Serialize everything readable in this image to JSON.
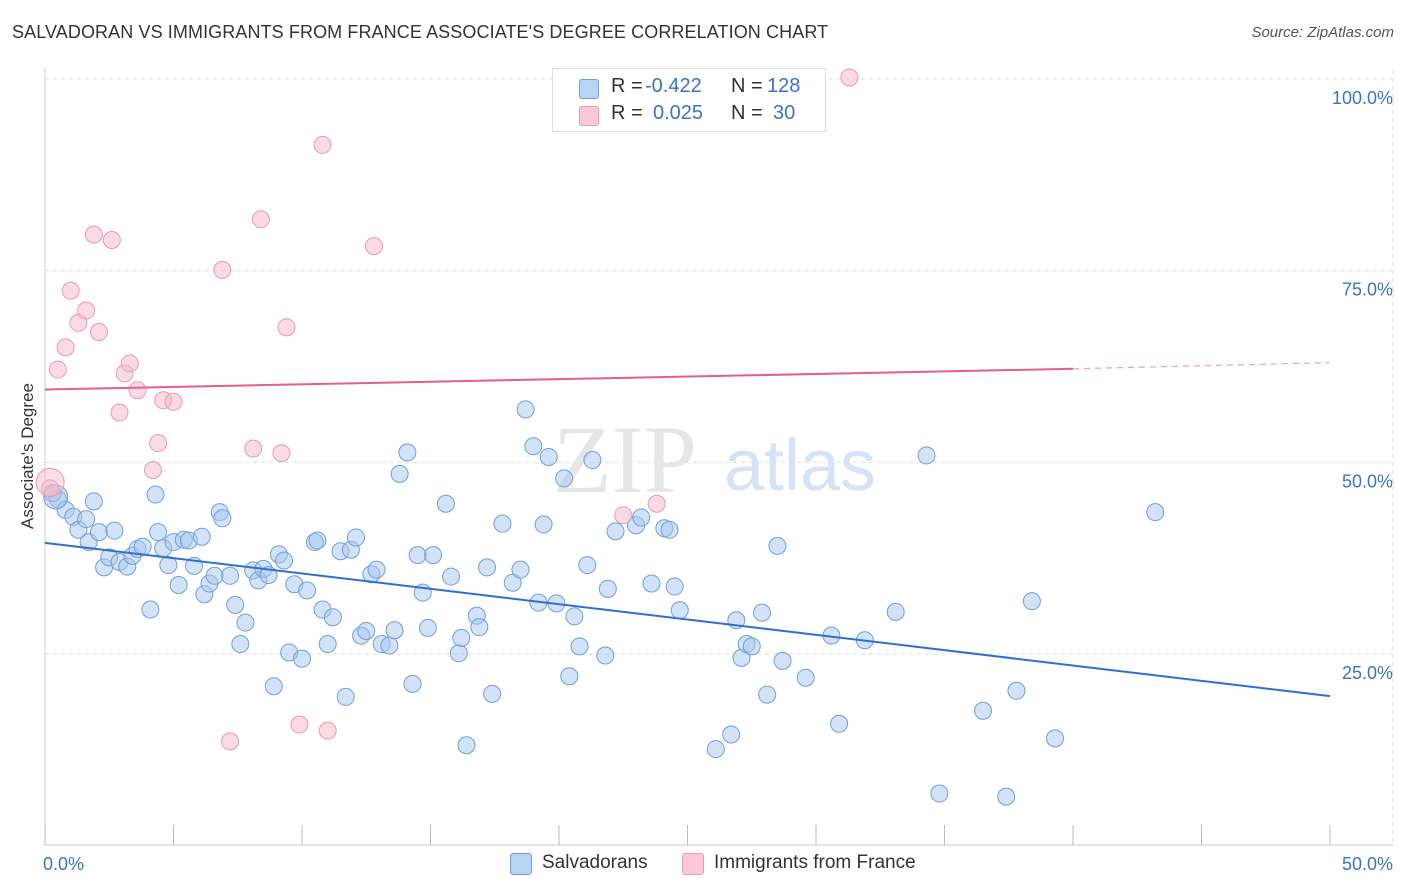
{
  "header": {
    "title": "SALVADORAN VS IMMIGRANTS FROM FRANCE ASSOCIATE'S DEGREE CORRELATION CHART",
    "source": "Source: ZipAtlas.com"
  },
  "legend": {
    "series1": {
      "r_label": "R =",
      "r_value": "-0.422",
      "n_label": "N =",
      "n_value": "128"
    },
    "series2": {
      "r_label": "R =",
      "r_value": "0.025",
      "n_label": "N =",
      "n_value": "30"
    }
  },
  "bottom_legend": {
    "series1": "Salvadorans",
    "series2": "Immigrants from France"
  },
  "colors": {
    "series1_fill": "#a8c8f0",
    "series1_stroke": "#6f9fd8",
    "series1_line": "#2f6fd0",
    "series2_fill": "#f8b8c8",
    "series2_stroke": "#e89ab0",
    "series2_line": "#e06090",
    "axis_text": "#3a73c8",
    "grid": "#dddddd"
  },
  "chart_data": {
    "type": "scatter",
    "title": "SALVADORAN VS IMMIGRANTS FROM FRANCE ASSOCIATE'S DEGREE CORRELATION CHART",
    "xlabel": "",
    "ylabel": "Associate's Degree",
    "xlim": [
      0,
      50
    ],
    "ylim": [
      0,
      102
    ],
    "x_tick_labels": [
      "0.0%",
      "50.0%"
    ],
    "y_ticks": [
      25,
      50,
      75,
      100
    ],
    "y_tick_labels": [
      "25.0%",
      "50.0%",
      "75.0%",
      "100.0%"
    ],
    "watermark": {
      "zip": "ZIP",
      "atlas": "atlas"
    },
    "series": [
      {
        "name": "Salvadorans",
        "r": -0.422,
        "n": 128,
        "trend": {
          "x": [
            0,
            50
          ],
          "y": [
            39.5,
            19.5
          ]
        },
        "points": [
          [
            0.5,
            45.2
          ],
          [
            0.8,
            43.8
          ],
          [
            1.1,
            42.9
          ],
          [
            1.3,
            41.2
          ],
          [
            1.6,
            42.6
          ],
          [
            1.7,
            39.6
          ],
          [
            1.9,
            44.9
          ],
          [
            2.1,
            40.9
          ],
          [
            2.3,
            36.3
          ],
          [
            2.5,
            37.6
          ],
          [
            2.7,
            41.1
          ],
          [
            2.9,
            37.0
          ],
          [
            3.2,
            36.4
          ],
          [
            3.4,
            37.8
          ],
          [
            3.6,
            38.7
          ],
          [
            3.8,
            39.0
          ],
          [
            4.1,
            30.8
          ],
          [
            4.3,
            45.8
          ],
          [
            4.4,
            40.9
          ],
          [
            4.6,
            38.8
          ],
          [
            4.8,
            36.6
          ],
          [
            5.0,
            39.6
          ],
          [
            5.2,
            34.0
          ],
          [
            5.4,
            39.9
          ],
          [
            5.6,
            39.8
          ],
          [
            5.8,
            36.5
          ],
          [
            6.1,
            40.3
          ],
          [
            6.2,
            32.8
          ],
          [
            6.4,
            34.2
          ],
          [
            6.6,
            35.2
          ],
          [
            6.8,
            43.5
          ],
          [
            6.9,
            42.7
          ],
          [
            7.2,
            35.2
          ],
          [
            7.4,
            31.4
          ],
          [
            7.6,
            26.3
          ],
          [
            7.8,
            29.1
          ],
          [
            8.1,
            35.9
          ],
          [
            8.3,
            34.6
          ],
          [
            8.5,
            36.1
          ],
          [
            8.7,
            35.3
          ],
          [
            8.9,
            20.8
          ],
          [
            9.1,
            38.0
          ],
          [
            9.3,
            37.2
          ],
          [
            9.5,
            25.2
          ],
          [
            9.7,
            34.1
          ],
          [
            10.0,
            24.4
          ],
          [
            10.2,
            33.3
          ],
          [
            10.5,
            39.6
          ],
          [
            10.6,
            39.8
          ],
          [
            10.8,
            30.8
          ],
          [
            11.0,
            26.3
          ],
          [
            11.2,
            29.8
          ],
          [
            11.5,
            38.4
          ],
          [
            11.7,
            19.4
          ],
          [
            11.9,
            38.6
          ],
          [
            12.1,
            40.2
          ],
          [
            12.3,
            27.4
          ],
          [
            12.5,
            28.0
          ],
          [
            12.7,
            35.4
          ],
          [
            12.9,
            36.0
          ],
          [
            13.1,
            26.3
          ],
          [
            13.4,
            26.1
          ],
          [
            13.6,
            28.1
          ],
          [
            13.8,
            48.5
          ],
          [
            14.1,
            51.3
          ],
          [
            14.3,
            21.1
          ],
          [
            14.5,
            37.9
          ],
          [
            14.7,
            33.0
          ],
          [
            14.9,
            28.4
          ],
          [
            15.1,
            37.9
          ],
          [
            15.6,
            44.6
          ],
          [
            15.8,
            35.1
          ],
          [
            16.1,
            25.1
          ],
          [
            16.2,
            27.1
          ],
          [
            16.4,
            13.1
          ],
          [
            16.8,
            30.0
          ],
          [
            16.9,
            28.5
          ],
          [
            17.2,
            36.3
          ],
          [
            17.4,
            19.8
          ],
          [
            17.8,
            42.0
          ],
          [
            18.2,
            34.3
          ],
          [
            18.5,
            36.0
          ],
          [
            18.7,
            56.9
          ],
          [
            19.0,
            52.1
          ],
          [
            19.2,
            31.7
          ],
          [
            19.4,
            41.9
          ],
          [
            19.6,
            50.7
          ],
          [
            19.9,
            31.6
          ],
          [
            20.2,
            47.9
          ],
          [
            20.4,
            22.1
          ],
          [
            20.6,
            29.9
          ],
          [
            20.8,
            26.0
          ],
          [
            21.1,
            36.6
          ],
          [
            21.3,
            50.3
          ],
          [
            21.8,
            24.8
          ],
          [
            21.9,
            33.5
          ],
          [
            22.2,
            41.0
          ],
          [
            23.0,
            41.8
          ],
          [
            23.2,
            42.8
          ],
          [
            23.6,
            34.2
          ],
          [
            24.1,
            41.4
          ],
          [
            24.3,
            41.2
          ],
          [
            24.5,
            33.8
          ],
          [
            24.7,
            30.7
          ],
          [
            26.1,
            12.6
          ],
          [
            26.7,
            14.5
          ],
          [
            26.9,
            29.4
          ],
          [
            27.1,
            24.5
          ],
          [
            27.3,
            26.3
          ],
          [
            27.5,
            26.0
          ],
          [
            27.9,
            30.4
          ],
          [
            28.1,
            19.7
          ],
          [
            28.5,
            39.1
          ],
          [
            28.7,
            24.1
          ],
          [
            29.6,
            21.9
          ],
          [
            30.6,
            27.4
          ],
          [
            30.9,
            15.9
          ],
          [
            31.9,
            26.8
          ],
          [
            33.1,
            30.5
          ],
          [
            34.3,
            50.9
          ],
          [
            34.8,
            6.8
          ],
          [
            36.5,
            17.6
          ],
          [
            37.4,
            6.4
          ],
          [
            37.8,
            20.2
          ],
          [
            38.4,
            31.9
          ],
          [
            39.3,
            14.0
          ],
          [
            43.2,
            43.5
          ],
          [
            0.3,
            46.0
          ]
        ]
      },
      {
        "name": "Immigrants from France",
        "r": 0.025,
        "n": 30,
        "trend": {
          "x": [
            0,
            40
          ],
          "y": [
            59.5,
            62.2
          ]
        },
        "trend_dashed": {
          "x": [
            40,
            50
          ],
          "y": [
            62.2,
            63.0
          ]
        },
        "points": [
          [
            0.2,
            46.6
          ],
          [
            0.5,
            62.1
          ],
          [
            0.8,
            65.0
          ],
          [
            1.0,
            72.4
          ],
          [
            1.3,
            68.2
          ],
          [
            1.6,
            69.8
          ],
          [
            1.9,
            79.7
          ],
          [
            2.1,
            67.0
          ],
          [
            2.6,
            79.0
          ],
          [
            2.9,
            56.5
          ],
          [
            3.1,
            61.6
          ],
          [
            3.3,
            62.9
          ],
          [
            3.6,
            59.4
          ],
          [
            4.2,
            49.0
          ],
          [
            4.4,
            52.5
          ],
          [
            4.6,
            58.1
          ],
          [
            5.0,
            57.9
          ],
          [
            6.9,
            75.1
          ],
          [
            7.2,
            13.6
          ],
          [
            8.1,
            51.8
          ],
          [
            8.4,
            81.7
          ],
          [
            9.2,
            51.2
          ],
          [
            9.4,
            67.6
          ],
          [
            9.9,
            15.8
          ],
          [
            10.8,
            91.4
          ],
          [
            11.0,
            15.0
          ],
          [
            12.8,
            78.2
          ],
          [
            22.5,
            43.1
          ],
          [
            23.8,
            44.6
          ],
          [
            31.3,
            100.2
          ]
        ]
      }
    ]
  }
}
